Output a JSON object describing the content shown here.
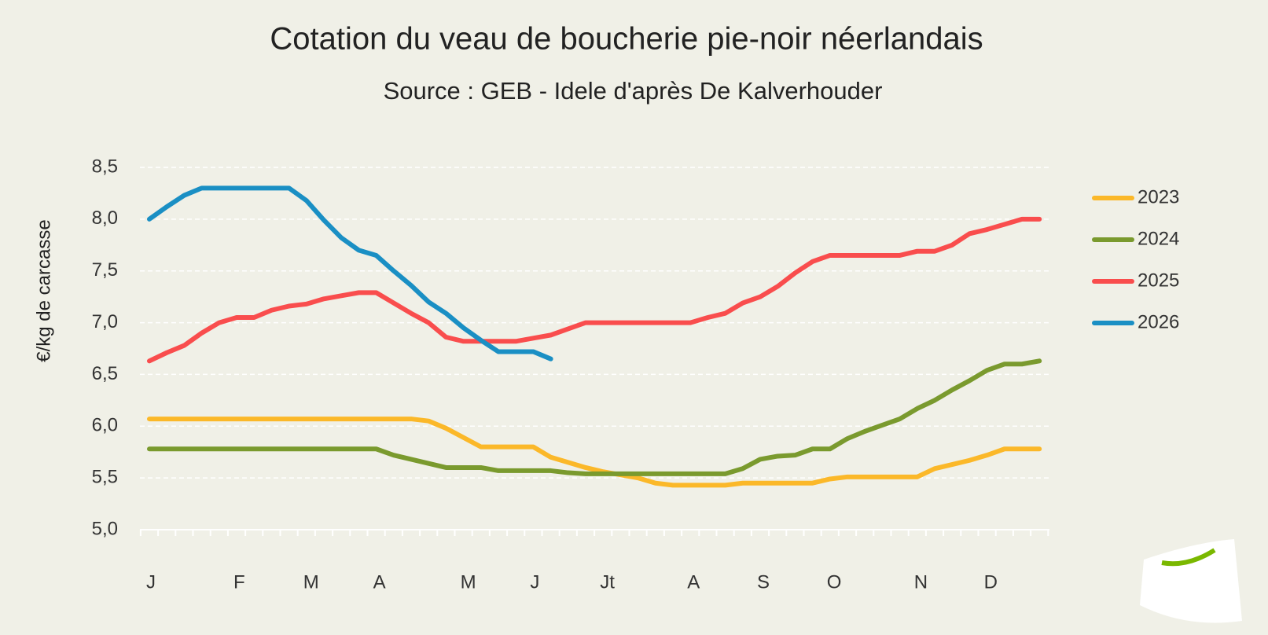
{
  "chart_data": {
    "type": "line",
    "title": "Cotation du veau de boucherie pie-noir néerlandais",
    "subtitle": "Source : GEB - Idele d'après De Kalverhouder",
    "y_label": "€/kg de carcasse",
    "categories": [
      "J",
      null,
      null,
      null,
      null,
      "F",
      null,
      null,
      null,
      "M",
      null,
      null,
      null,
      "A",
      null,
      null,
      null,
      null,
      "M",
      null,
      null,
      null,
      "J",
      null,
      null,
      null,
      "Jt",
      null,
      null,
      null,
      null,
      "A",
      null,
      null,
      null,
      "S",
      null,
      null,
      null,
      "O",
      null,
      null,
      null,
      null,
      "N",
      null,
      null,
      null,
      "D",
      null,
      null,
      null
    ],
    "ylim": [
      5.0,
      8.5
    ],
    "yticks": [
      {
        "value": 5.0,
        "label": "5,0"
      },
      {
        "value": 5.5,
        "label": "5,5"
      },
      {
        "value": 6.0,
        "label": "6,0"
      },
      {
        "value": 6.5,
        "label": "6,5"
      },
      {
        "value": 7.0,
        "label": "7,0"
      },
      {
        "value": 7.5,
        "label": "7,5"
      },
      {
        "value": 8.0,
        "label": "8,0"
      },
      {
        "value": 8.5,
        "label": "8,5"
      }
    ],
    "grid": true,
    "legend": "right",
    "series": [
      {
        "name": "2023",
        "color": "#fbb829",
        "values": [
          6.07,
          6.07,
          6.07,
          6.07,
          6.07,
          6.07,
          6.07,
          6.07,
          6.07,
          6.07,
          6.07,
          6.07,
          6.07,
          6.07,
          6.07,
          6.07,
          6.05,
          5.98,
          5.89,
          5.8,
          5.8,
          5.8,
          5.8,
          5.7,
          5.65,
          5.6,
          5.56,
          5.53,
          5.5,
          5.45,
          5.43,
          5.43,
          5.43,
          5.43,
          5.45,
          5.45,
          5.45,
          5.45,
          5.45,
          5.49,
          5.51,
          5.51,
          5.51,
          5.51,
          5.51,
          5.59,
          5.63,
          5.67,
          5.72,
          5.78,
          5.78,
          5.78
        ]
      },
      {
        "name": "2024",
        "color": "#7a9a2e",
        "values": [
          5.78,
          5.78,
          5.78,
          5.78,
          5.78,
          5.78,
          5.78,
          5.78,
          5.78,
          5.78,
          5.78,
          5.78,
          5.78,
          5.78,
          5.72,
          5.68,
          5.64,
          5.6,
          5.6,
          5.6,
          5.57,
          5.57,
          5.57,
          5.57,
          5.55,
          5.54,
          5.54,
          5.54,
          5.54,
          5.54,
          5.54,
          5.54,
          5.54,
          5.54,
          5.59,
          5.68,
          5.71,
          5.72,
          5.78,
          5.78,
          5.88,
          5.95,
          6.01,
          6.07,
          6.17,
          6.25,
          6.35,
          6.44,
          6.54,
          6.6,
          6.6,
          6.63
        ]
      },
      {
        "name": "2025",
        "color": "#f94d4d",
        "values": [
          6.63,
          6.71,
          6.78,
          6.9,
          7.0,
          7.05,
          7.05,
          7.12,
          7.16,
          7.18,
          7.23,
          7.26,
          7.29,
          7.29,
          7.19,
          7.09,
          7.0,
          6.86,
          6.82,
          6.82,
          6.82,
          6.82,
          6.85,
          6.88,
          6.94,
          7.0,
          7.0,
          7.0,
          7.0,
          7.0,
          7.0,
          7.0,
          7.05,
          7.09,
          7.19,
          7.25,
          7.35,
          7.48,
          7.59,
          7.65,
          7.65,
          7.65,
          7.65,
          7.65,
          7.69,
          7.69,
          7.75,
          7.86,
          7.9,
          7.95,
          8.0,
          8.0
        ]
      },
      {
        "name": "2026",
        "color": "#1a8fc4",
        "values": [
          8.0,
          8.12,
          8.23,
          8.3,
          8.3,
          8.3,
          8.3,
          8.3,
          8.3,
          8.18,
          7.99,
          7.82,
          7.7,
          7.65,
          7.5,
          7.36,
          7.2,
          7.09,
          6.95,
          6.83,
          6.72,
          6.72,
          6.72,
          6.65,
          null,
          null,
          null,
          null,
          null,
          null,
          null,
          null,
          null,
          null,
          null,
          null,
          null,
          null,
          null,
          null,
          null,
          null,
          null,
          null,
          null,
          null,
          null,
          null,
          null,
          null,
          null,
          null
        ]
      }
    ]
  }
}
